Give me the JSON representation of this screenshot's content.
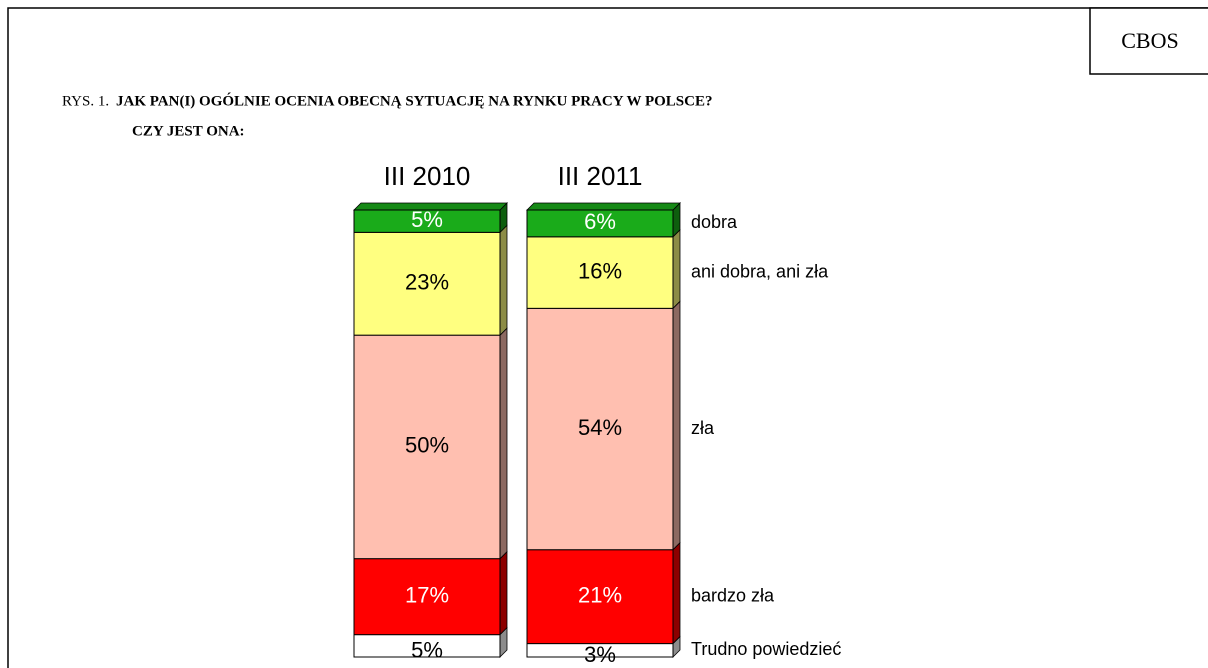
{
  "chart_data": {
    "type": "stacked_bar_100",
    "source": "CBOS",
    "figure_label": "RYS. 1.",
    "title": [
      "JAK PAN(I) OGÓLNIE OCENIA OBECNĄ SYTUACJĘ NA RYNKU PRACY W POLSCE?",
      "CZY JEST ONA:"
    ],
    "categories": [
      "III 2010",
      "III 2011"
    ],
    "ylim": [
      0,
      100
    ],
    "series": [
      {
        "name": "Trudno powiedzieć",
        "color": "#ffffff",
        "values": [
          5,
          3
        ],
        "value_labels": [
          "5%",
          "3%"
        ]
      },
      {
        "name": "bardzo zła",
        "color": "#ff0000",
        "values": [
          17,
          21
        ],
        "value_labels": [
          "17%",
          "21%"
        ]
      },
      {
        "name": "zła",
        "color": "#ffbfb0",
        "values": [
          50,
          54
        ],
        "value_labels": [
          "50%",
          "54%"
        ]
      },
      {
        "name": "ani dobra, ani zła",
        "color": "#ffff80",
        "values": [
          23,
          16
        ],
        "value_labels": [
          "23%",
          "16%"
        ]
      },
      {
        "name": "dobra",
        "color": "#1aab1a",
        "values": [
          5,
          6
        ],
        "value_labels": [
          "5%",
          "6%"
        ]
      }
    ]
  }
}
